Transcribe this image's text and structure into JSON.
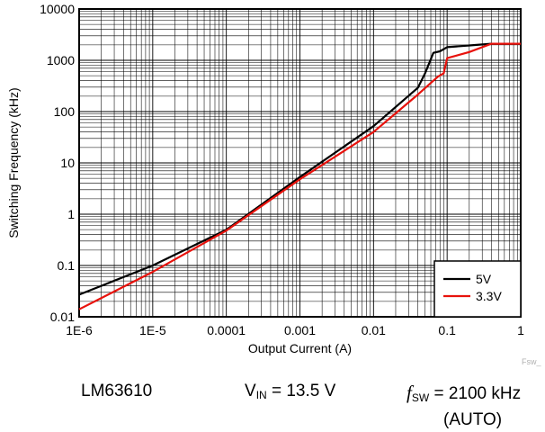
{
  "chart_data": {
    "type": "line",
    "xlabel": "Output Current (A)",
    "ylabel": "Switching Frequency (kHz)",
    "xscale": "log",
    "yscale": "log",
    "xlim": [
      1e-06,
      1
    ],
    "ylim": [
      0.01,
      10000
    ],
    "grid": true,
    "legend_position": "bottom-right",
    "x_tick_labels": [
      "1E-6",
      "1E-5",
      "0.0001",
      "0.001",
      "0.01",
      "0.1",
      "1"
    ],
    "y_tick_labels": [
      "10000",
      "1000",
      "100",
      "10",
      "1",
      "0.1",
      "0.01"
    ],
    "series": [
      {
        "name": "5V",
        "color": "#000000",
        "points": [
          [
            1e-06,
            0.027
          ],
          [
            1e-05,
            0.1
          ],
          [
            0.0001,
            0.5
          ],
          [
            0.001,
            5.3
          ],
          [
            0.01,
            52
          ],
          [
            0.04,
            290
          ],
          [
            0.05,
            550
          ],
          [
            0.065,
            1400
          ],
          [
            0.08,
            1500
          ],
          [
            0.1,
            1800
          ],
          [
            0.2,
            1950
          ],
          [
            0.4,
            2100
          ],
          [
            1,
            2100
          ]
        ]
      },
      {
        "name": "3.3V",
        "color": "#e8120c",
        "points": [
          [
            1e-06,
            0.014
          ],
          [
            1e-05,
            0.075
          ],
          [
            0.0001,
            0.48
          ],
          [
            0.001,
            4.8
          ],
          [
            0.01,
            40
          ],
          [
            0.04,
            215
          ],
          [
            0.075,
            480
          ],
          [
            0.09,
            560
          ],
          [
            0.1,
            1100
          ],
          [
            0.2,
            1450
          ],
          [
            0.4,
            2100
          ],
          [
            1,
            2100
          ]
        ]
      }
    ]
  },
  "watermark": "Fsw_",
  "caption": {
    "device": "LM63610",
    "vin_symbol": "V",
    "vin_sub": "IN",
    "vin_value": " = 13.5 V",
    "fsw_symbol": "f",
    "fsw_sub": "SW",
    "fsw_value": " = 2100 kHz",
    "fsw_mode": "(AUTO)"
  }
}
